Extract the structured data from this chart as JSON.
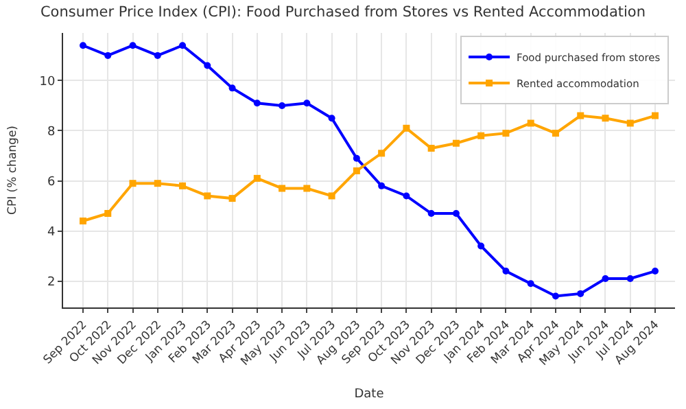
{
  "chart_data": {
    "type": "line",
    "title": "Consumer Price Index (CPI): Food Purchased from Stores vs Rented Accommodation",
    "xlabel": "Date",
    "ylabel": "CPI (% change)",
    "categories": [
      "Sep 2022",
      "Oct 2022",
      "Nov 2022",
      "Dec 2022",
      "Jan 2023",
      "Feb 2023",
      "Mar 2023",
      "Apr 2023",
      "May 2023",
      "Jun 2023",
      "Jul 2023",
      "Aug 2023",
      "Sep 2023",
      "Oct 2023",
      "Nov 2023",
      "Dec 2023",
      "Jan 2024",
      "Feb 2024",
      "Mar 2024",
      "Apr 2024",
      "May 2024",
      "Jun 2024",
      "Jul 2024",
      "Aug 2024"
    ],
    "series": [
      {
        "name": "Food purchased from stores",
        "color": "#0000ff",
        "marker": "circle",
        "values": [
          11.4,
          11.0,
          11.4,
          11.0,
          11.4,
          10.6,
          9.7,
          9.1,
          9.0,
          9.1,
          8.5,
          6.9,
          5.8,
          5.4,
          4.7,
          4.7,
          3.4,
          2.4,
          1.9,
          1.4,
          1.5,
          2.1,
          2.1,
          2.4
        ]
      },
      {
        "name": "Rented accommodation",
        "color": "#ffa500",
        "marker": "square",
        "values": [
          4.4,
          4.7,
          5.9,
          5.9,
          5.8,
          5.4,
          5.3,
          6.1,
          5.7,
          5.7,
          5.4,
          6.4,
          7.1,
          8.1,
          7.3,
          7.5,
          7.8,
          7.9,
          8.3,
          7.9,
          8.6,
          8.5,
          8.3,
          8.6
        ]
      }
    ],
    "ylim": [
      0.95,
      11.9
    ],
    "yticks": [
      2,
      4,
      6,
      8,
      10
    ],
    "grid": true,
    "legend": "top right",
    "line_style": "solid"
  }
}
